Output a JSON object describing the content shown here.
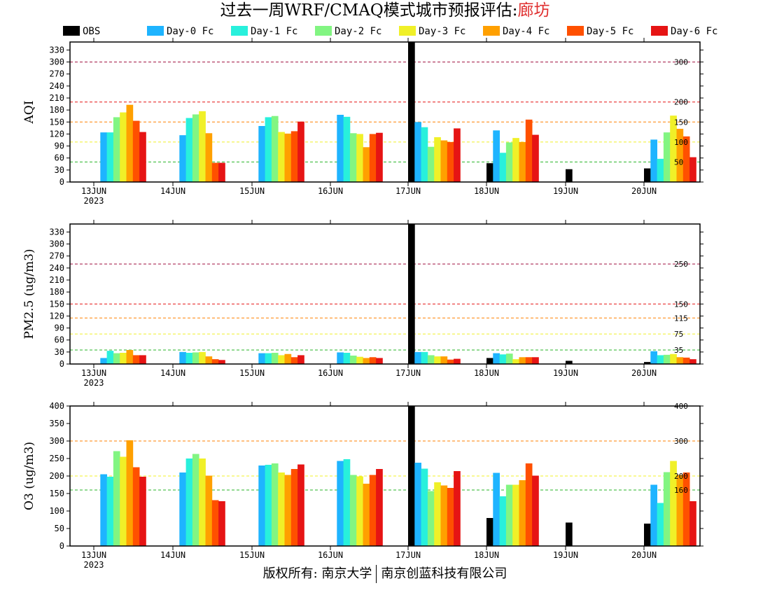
{
  "page": {
    "title_main": "过去一周WRF/CMAQ模式城市预报评估:",
    "title_city": "廊坊",
    "footer_left": "版权所有: 南京大学",
    "footer_right": "南京创蓝科技有限公司"
  },
  "chart_data": {
    "type": "bar",
    "categories": [
      "13JUN",
      "14JUN",
      "15JUN",
      "16JUN",
      "17JUN",
      "18JUN",
      "19JUN",
      "20JUN"
    ],
    "year_label": "2023",
    "legend": [
      {
        "name": "OBS",
        "color": "#000000"
      },
      {
        "name": "Day-0 Fc",
        "color": "#1eb4ff"
      },
      {
        "name": "Day-1 Fc",
        "color": "#28f0dc"
      },
      {
        "name": "Day-2 Fc",
        "color": "#82f582"
      },
      {
        "name": "Day-3 Fc",
        "color": "#f0f028"
      },
      {
        "name": "Day-4 Fc",
        "color": "#ffa000"
      },
      {
        "name": "Day-5 Fc",
        "color": "#ff5000"
      },
      {
        "name": "Day-6 Fc",
        "color": "#e61414"
      }
    ],
    "panels": [
      {
        "ylabel": "AQI",
        "ylim": [
          0,
          350
        ],
        "yticks": [
          0,
          30,
          60,
          90,
          120,
          150,
          180,
          210,
          240,
          270,
          300,
          330
        ],
        "thresholds": [
          {
            "value": 300,
            "label": "300",
            "color": "#a01040"
          },
          {
            "value": 200,
            "label": "200",
            "color": "#e61414"
          },
          {
            "value": 150,
            "label": "150",
            "color": "#ff8000"
          },
          {
            "value": 100,
            "label": "100",
            "color": "#f0f028"
          },
          {
            "value": 50,
            "label": "50",
            "color": "#28b428"
          }
        ],
        "series": [
          {
            "name": "OBS",
            "values": [
              null,
              null,
              null,
              null,
              355,
              47,
              32,
              34
            ]
          },
          {
            "name": "Day-0 Fc",
            "values": [
              124,
              117,
              140,
              168,
              150,
              129,
              null,
              106
            ]
          },
          {
            "name": "Day-1 Fc",
            "values": [
              124,
              160,
              162,
              163,
              137,
              73,
              null,
              58
            ]
          },
          {
            "name": "Day-2 Fc",
            "values": [
              162,
              169,
              165,
              122,
              88,
              99,
              null,
              124
            ]
          },
          {
            "name": "Day-3 Fc",
            "values": [
              174,
              177,
              125,
              120,
              112,
              110,
              null,
              166
            ]
          },
          {
            "name": "Day-4 Fc",
            "values": [
              193,
              122,
              121,
              87,
              104,
              100,
              null,
              133
            ]
          },
          {
            "name": "Day-5 Fc",
            "values": [
              153,
              48,
              127,
              120,
              100,
              156,
              null,
              114
            ]
          },
          {
            "name": "Day-6 Fc",
            "values": [
              125,
              48,
              151,
              123,
              134,
              118,
              null,
              62
            ]
          }
        ]
      },
      {
        "ylabel": "PM2.5 (ug/m3)",
        "ylim": [
          0,
          350
        ],
        "yticks": [
          0,
          30,
          60,
          90,
          120,
          150,
          180,
          210,
          240,
          270,
          300,
          330
        ],
        "thresholds": [
          {
            "value": 250,
            "label": "250",
            "color": "#a01040"
          },
          {
            "value": 150,
            "label": "150",
            "color": "#e61414"
          },
          {
            "value": 115,
            "label": "115",
            "color": "#ff8000"
          },
          {
            "value": 75,
            "label": "75",
            "color": "#f0f028"
          },
          {
            "value": 35,
            "label": "35",
            "color": "#28b428"
          }
        ],
        "series": [
          {
            "name": "OBS",
            "values": [
              null,
              null,
              null,
              null,
              355,
              15,
              8,
              5
            ]
          },
          {
            "name": "Day-0 Fc",
            "values": [
              15,
              30,
              27,
              29,
              30,
              27,
              null,
              32
            ]
          },
          {
            "name": "Day-1 Fc",
            "values": [
              33,
              28,
              27,
              28,
              30,
              24,
              null,
              22
            ]
          },
          {
            "name": "Day-2 Fc",
            "values": [
              27,
              29,
              28,
              21,
              22,
              26,
              null,
              23
            ]
          },
          {
            "name": "Day-3 Fc",
            "values": [
              28,
              30,
              22,
              18,
              19,
              12,
              null,
              25
            ]
          },
          {
            "name": "Day-4 Fc",
            "values": [
              35,
              19,
              25,
              15,
              19,
              17,
              null,
              17
            ]
          },
          {
            "name": "Day-5 Fc",
            "values": [
              22,
              12,
              17,
              17,
              11,
              17,
              null,
              16
            ]
          },
          {
            "name": "Day-6 Fc",
            "values": [
              22,
              10,
              22,
              15,
              13,
              17,
              null,
              12
            ]
          }
        ]
      },
      {
        "ylabel": "O3 (ug/m3)",
        "ylim": [
          0,
          400
        ],
        "yticks": [
          0,
          50,
          100,
          150,
          200,
          250,
          300,
          350,
          400
        ],
        "thresholds": [
          {
            "value": 400,
            "label": "400",
            "color": "#a01040"
          },
          {
            "value": 300,
            "label": "300",
            "color": "#ff8000"
          },
          {
            "value": 200,
            "label": "200",
            "color": "#f0f028"
          },
          {
            "value": 160,
            "label": "160",
            "color": "#28b428"
          }
        ],
        "series": [
          {
            "name": "OBS",
            "values": [
              null,
              null,
              null,
              null,
              400,
              80,
              67,
              64
            ]
          },
          {
            "name": "Day-0 Fc",
            "values": [
              205,
              210,
              230,
              243,
              238,
              209,
              null,
              175
            ]
          },
          {
            "name": "Day-1 Fc",
            "values": [
              198,
              250,
              232,
              248,
              221,
              142,
              null,
              123
            ]
          },
          {
            "name": "Day-2 Fc",
            "values": [
              271,
              263,
              236,
              203,
              157,
              175,
              null,
              211
            ]
          },
          {
            "name": "Day-3 Fc",
            "values": [
              255,
              250,
              210,
              199,
              182,
              175,
              null,
              243
            ]
          },
          {
            "name": "Day-4 Fc",
            "values": [
              302,
              201,
              203,
              178,
              173,
              188,
              null,
              203
            ]
          },
          {
            "name": "Day-5 Fc",
            "values": [
              225,
              131,
              220,
              203,
              166,
              236,
              null,
              210
            ]
          },
          {
            "name": "Day-6 Fc",
            "values": [
              198,
              128,
              233,
              220,
              214,
              201,
              null,
              128
            ]
          }
        ]
      }
    ]
  }
}
